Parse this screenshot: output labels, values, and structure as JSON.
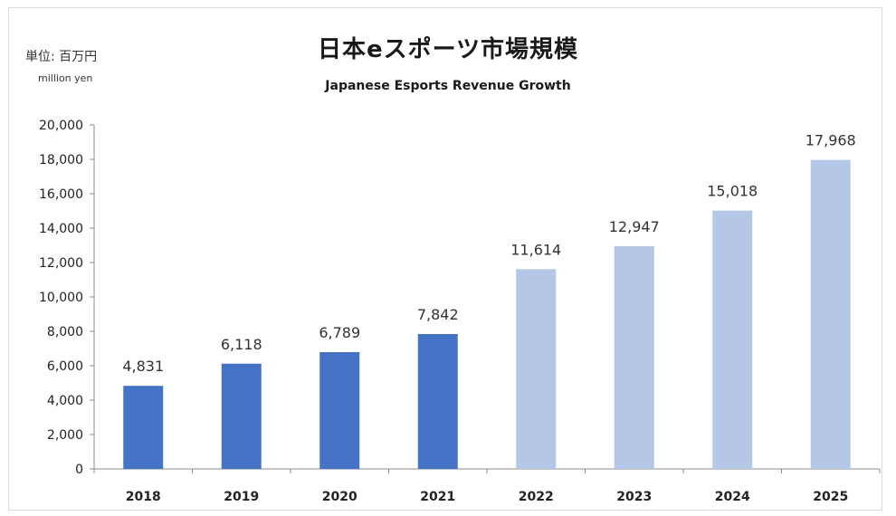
{
  "header": {
    "unit_jp": "単位: 百万円",
    "unit_en": "million yen"
  },
  "chart_data": {
    "type": "bar",
    "title": "日本eスポーツ市場規模",
    "subtitle": "Japanese Esports Revenue Growth",
    "xlabel": "",
    "ylabel": "",
    "categories": [
      "2018",
      "2019",
      "2020",
      "2021",
      "2022",
      "2023",
      "2024",
      "2025"
    ],
    "values": [
      4831,
      6118,
      6789,
      7842,
      11614,
      12947,
      15018,
      17968
    ],
    "data_labels": [
      "4,831",
      "6,118",
      "6,789",
      "7,842",
      "11,614",
      "12,947",
      "15,018",
      "17,968"
    ],
    "yticks": [
      "0",
      "2,000",
      "4,000",
      "6,000",
      "8,000",
      "10,000",
      "12,000",
      "14,000",
      "16,000",
      "18,000",
      "20,000"
    ],
    "ylim": [
      0,
      20000
    ],
    "grid": false,
    "legend": "none",
    "colors": {
      "actual": "#4472c4",
      "forecast": "#b4c7e7"
    },
    "bar_color_groups": [
      "actual",
      "actual",
      "actual",
      "actual",
      "forecast",
      "forecast",
      "forecast",
      "forecast"
    ]
  }
}
